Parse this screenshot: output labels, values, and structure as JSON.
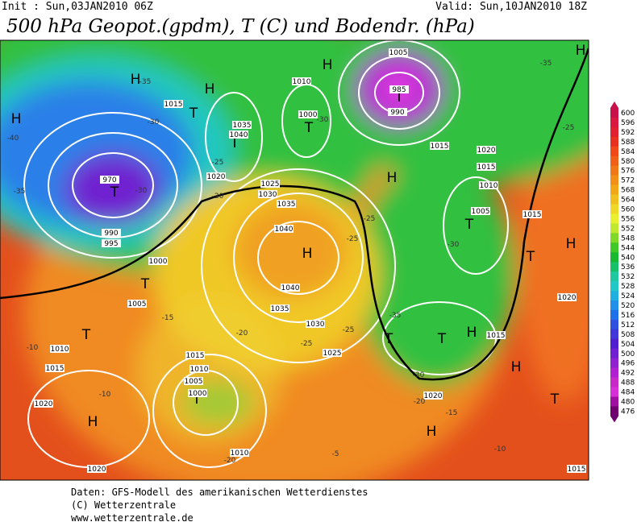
{
  "header": {
    "init": "Init : Sun,03JAN2010 06Z",
    "valid": "Valid: Sun,10JAN2010 18Z",
    "title": "500 hPa Geopot.(gpdm), T (C) und Bodendr. (hPa)"
  },
  "colorbar": {
    "levels": [
      600,
      596,
      592,
      588,
      584,
      580,
      576,
      572,
      568,
      564,
      560,
      556,
      552,
      548,
      544,
      540,
      536,
      532,
      528,
      524,
      520,
      516,
      512,
      508,
      504,
      500,
      496,
      492,
      488,
      484,
      480,
      476
    ],
    "colors": [
      "#c8104a",
      "#d81840",
      "#e02030",
      "#e83020",
      "#f04818",
      "#f06018",
      "#f07818",
      "#f09018",
      "#f0a818",
      "#f0c020",
      "#f0d828",
      "#e8f030",
      "#c0e830",
      "#80d828",
      "#40c828",
      "#18b830",
      "#18c068",
      "#20c8a0",
      "#20c8c8",
      "#20b0e0",
      "#2090e8",
      "#2070e8",
      "#3050e0",
      "#4038d8",
      "#5020d0",
      "#7020d0",
      "#9020d0",
      "#b020d0",
      "#c828c8",
      "#d830d8",
      "#a010a0",
      "#700070"
    ]
  },
  "map": {
    "labels": [
      "H",
      "T",
      "H",
      "H",
      "T",
      "H",
      "T",
      "T",
      "T",
      "H",
      "T",
      "H",
      "H",
      "T",
      "T",
      "T",
      "T",
      "T",
      "H",
      "H",
      "T",
      "T",
      "H",
      "H",
      "H",
      "1005",
      "985",
      "990",
      "1010",
      "1000",
      "1020",
      "1025",
      "1030",
      "1035",
      "1040",
      "1040",
      "1035",
      "1030",
      "1025",
      "1000",
      "995",
      "990",
      "970",
      "1015",
      "1020",
      "1015",
      "1010",
      "1005",
      "1015",
      "1020",
      "1015",
      "1010",
      "1015",
      "1020",
      "1020",
      "1015",
      "1010",
      "1005",
      "1000",
      "1010",
      "1020",
      "1015",
      "1005",
      "1015",
      "1040",
      "1035",
      "-35",
      "-30",
      "-40",
      "-35",
      "-30",
      "-25",
      "-20",
      "-25",
      "-25",
      "-30",
      "-35",
      "-30",
      "-25",
      "-25",
      "-20",
      "-15",
      "-10",
      "-10",
      "-15",
      "-20",
      "-10",
      "-5",
      "-20",
      "-25",
      "-35",
      "-30"
    ]
  },
  "footer": {
    "lines": [
      "Daten: GFS-Modell des amerikanischen Wetterdienstes",
      "(C) Wetterzentrale",
      "www.wetterzentrale.de"
    ]
  }
}
